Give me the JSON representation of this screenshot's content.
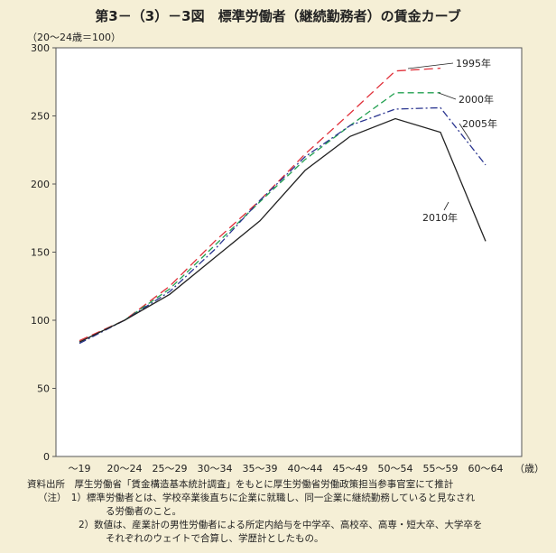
{
  "chart_data": {
    "type": "line",
    "title": "第3－（3）－3図　標準労働者（継続勤務者）の賃金カーブ",
    "ylabel": "（20～24歳＝100）",
    "xlabel": "（歳）",
    "ylim": [
      0,
      300
    ],
    "yticks": [
      0,
      50,
      100,
      150,
      200,
      250,
      300
    ],
    "categories": [
      "～19",
      "20～24",
      "25～29",
      "30～34",
      "35～39",
      "40～44",
      "45～49",
      "50～54",
      "55～59",
      "60～64"
    ],
    "series": [
      {
        "name": "1995年",
        "color": "#e0303a",
        "dash": "10,5",
        "values": [
          85,
          100,
          125,
          158,
          188,
          222,
          252,
          283,
          285,
          null
        ]
      },
      {
        "name": "2000年",
        "color": "#22a050",
        "dash": "7,4",
        "values": [
          84,
          100,
          123,
          155,
          187,
          218,
          243,
          267,
          267,
          null
        ]
      },
      {
        "name": "2005年",
        "color": "#2a3590",
        "dash": "8,3,2,3",
        "values": [
          83,
          100,
          121,
          152,
          188,
          220,
          243,
          255,
          256,
          214
        ]
      },
      {
        "name": "2010年",
        "color": "#222222",
        "dash": "",
        "values": [
          84,
          100,
          119,
          146,
          173,
          210,
          235,
          248,
          238,
          158
        ]
      }
    ]
  },
  "notes": {
    "source": "資料出所　厚生労働省「賃金構造基本統計調査」をもとに厚生労働省労働政策担当参事官室にて推計",
    "note1a": "（注）　1）標準労働者とは、学校卒業後直ちに企業に就職し、同一企業に継続勤務していると見なされ",
    "note1b": "る労働者のこと。",
    "note2a": "2）数値は、産業計の男性労働者による所定内給与を中学卒、高校卒、高専・短大卒、大学卒を",
    "note2b": "それぞれのウェイトで合算し、学歴計としたもの。"
  }
}
